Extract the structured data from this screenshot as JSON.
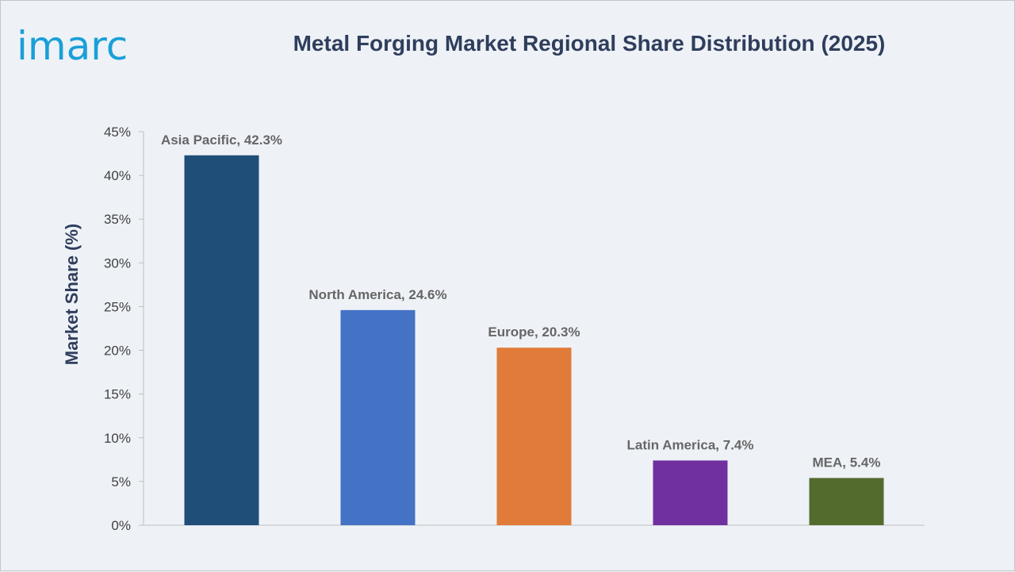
{
  "brand": {
    "logo_text": "imarc"
  },
  "chart_data": {
    "type": "bar",
    "title": "Metal Forging Market Regional Share Distribution (2025)",
    "xlabel": "",
    "ylabel": "Market Share (%)",
    "categories": [
      "Asia Pacific",
      "North America",
      "Europe",
      "Latin America",
      "MEA"
    ],
    "values": [
      42.3,
      24.6,
      20.3,
      7.4,
      5.4
    ],
    "data_labels": [
      "Asia Pacific, 42.3%",
      "North America, 24.6%",
      "Europe, 20.3%",
      "Latin America, 7.4%",
      "MEA, 5.4%"
    ],
    "colors": [
      "#1f4e79",
      "#4472c4",
      "#e07b39",
      "#7030a0",
      "#546b2e"
    ],
    "ylim": [
      0,
      45
    ],
    "yticks": [
      0,
      5,
      10,
      15,
      20,
      25,
      30,
      35,
      40,
      45
    ],
    "ytick_labels": [
      "0%",
      "5%",
      "10%",
      "15%",
      "20%",
      "25%",
      "30%",
      "35%",
      "40%",
      "45%"
    ],
    "grid": false,
    "legend": "none"
  }
}
